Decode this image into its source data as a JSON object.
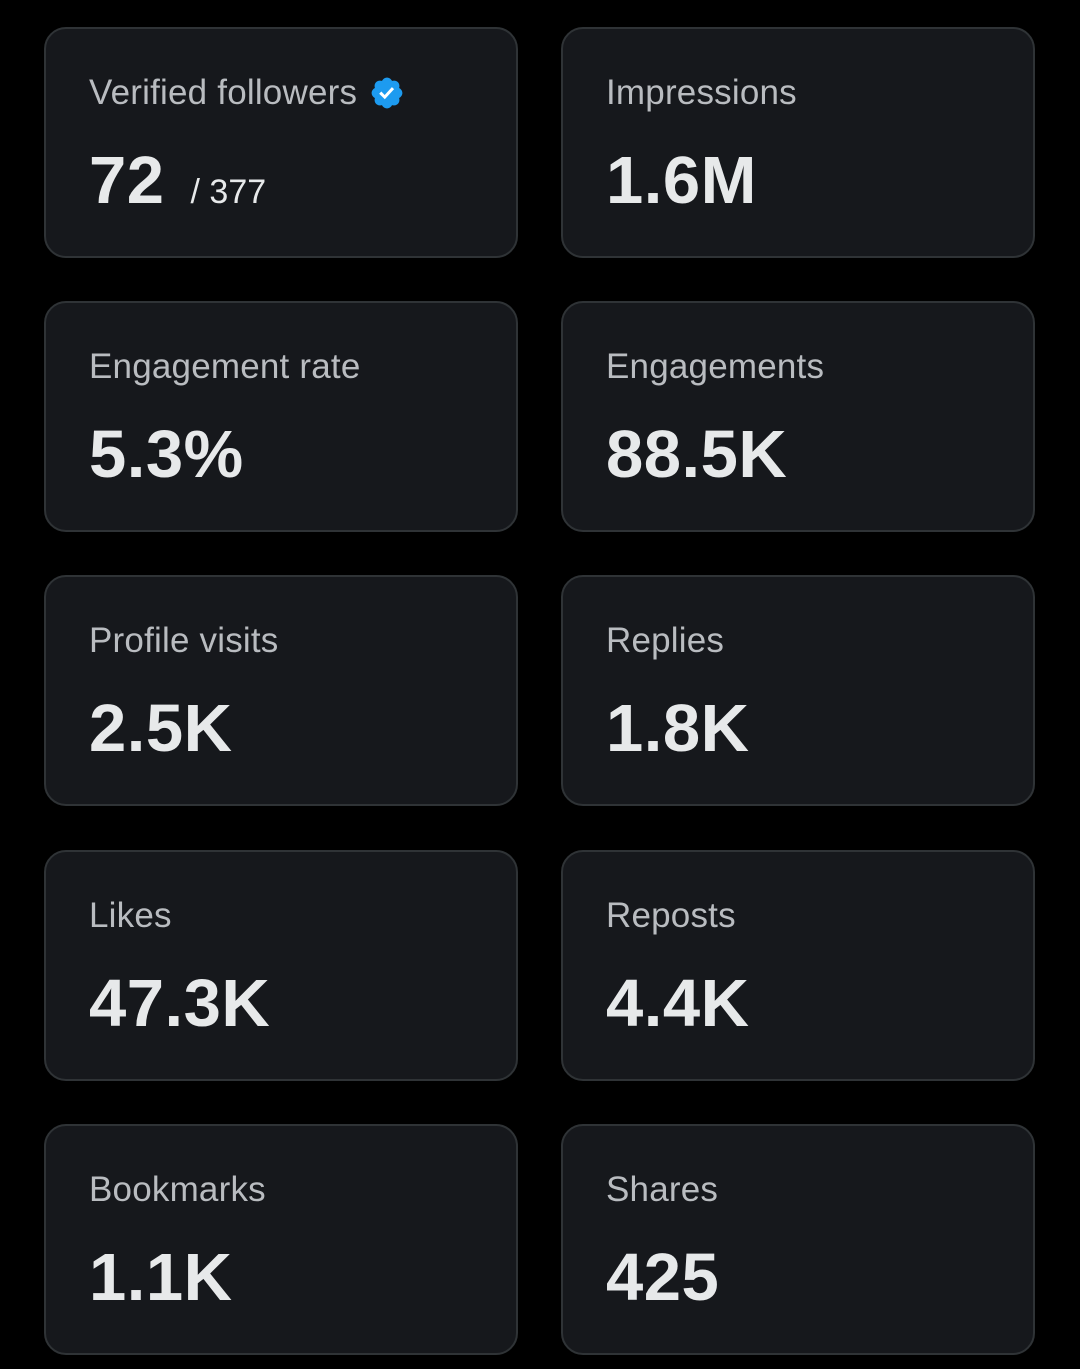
{
  "colors": {
    "background": "#000000",
    "card_background": "#16181c",
    "card_border": "#2f3336",
    "label_text": "#b9bcc0",
    "value_text": "#e7e9ea",
    "verified_badge": "#1d9bf0"
  },
  "cards": [
    {
      "label": "Verified followers",
      "value": "72",
      "sub_value": "/ 377",
      "icon": "verified-badge-icon"
    },
    {
      "label": "Impressions",
      "value": "1.6M"
    },
    {
      "label": "Engagement rate",
      "value": "5.3%"
    },
    {
      "label": "Engagements",
      "value": "88.5K"
    },
    {
      "label": "Profile visits",
      "value": "2.5K"
    },
    {
      "label": "Replies",
      "value": "1.8K"
    },
    {
      "label": "Likes",
      "value": "47.3K"
    },
    {
      "label": "Reposts",
      "value": "4.4K"
    },
    {
      "label": "Bookmarks",
      "value": "1.1K"
    },
    {
      "label": "Shares",
      "value": "425"
    }
  ]
}
